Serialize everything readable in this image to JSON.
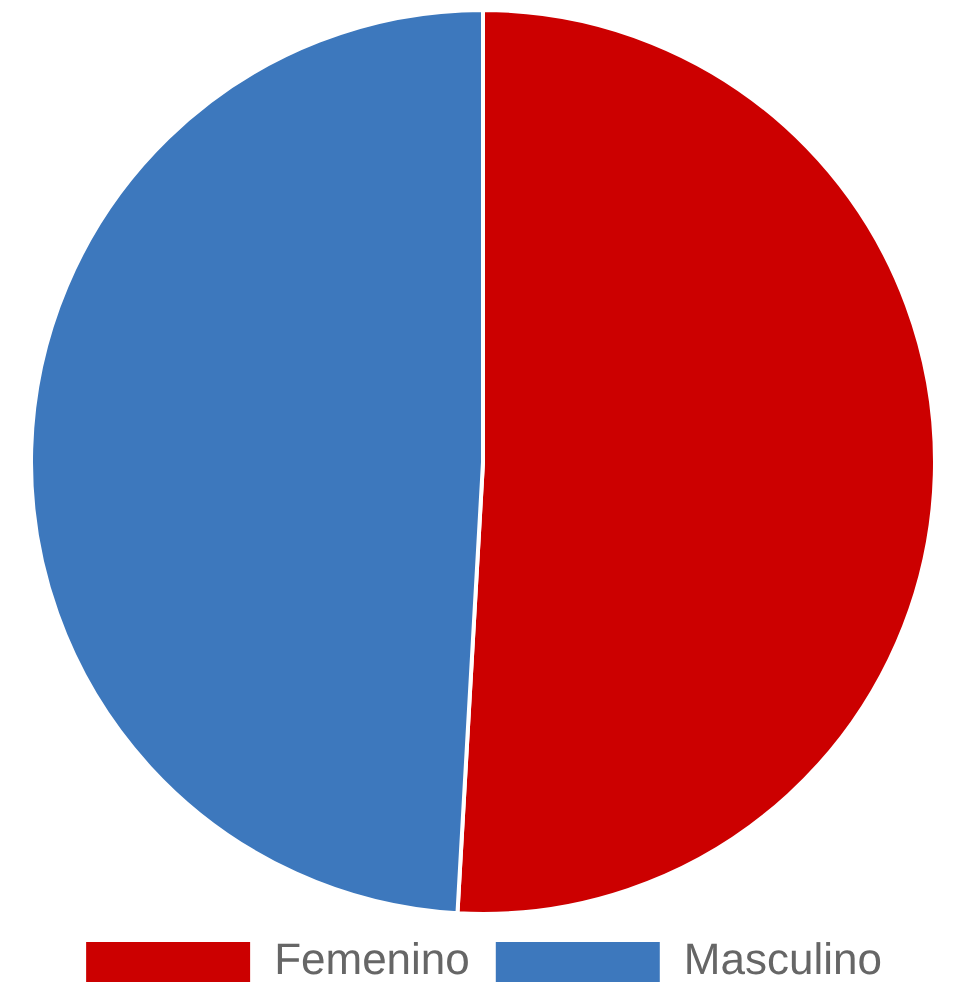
{
  "chart_data": {
    "type": "pie",
    "categories": [
      "Femenino",
      "Masculino"
    ],
    "values": [
      50.9,
      49.1
    ],
    "colors": [
      "#cc0000",
      "#3d78bd"
    ],
    "legend": "bottom"
  }
}
